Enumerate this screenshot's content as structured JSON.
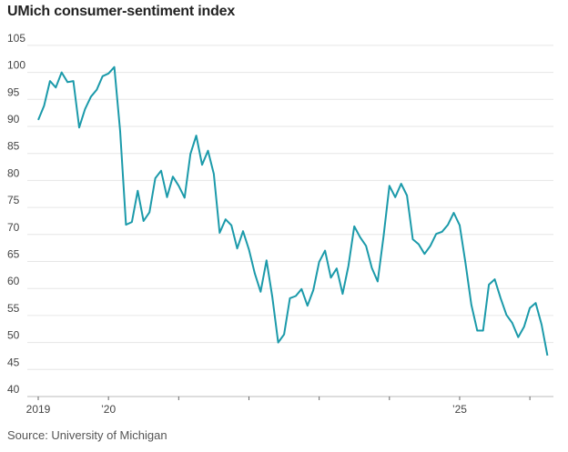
{
  "chart_data": {
    "type": "line",
    "title": "UMich consumer-sentiment index",
    "source": "Source: University of Michigan",
    "xlabel": "",
    "ylabel": "",
    "ylim": [
      40,
      105
    ],
    "yticks": [
      "40",
      "45",
      "50",
      "55",
      "60",
      "65",
      "70",
      "75",
      "80",
      "85",
      "90",
      "95",
      "100",
      "105"
    ],
    "xticks": [
      {
        "month_index": 0,
        "label": "2019"
      },
      {
        "month_index": 12,
        "label": "’20"
      },
      {
        "month_index": 24,
        "label": ""
      },
      {
        "month_index": 36,
        "label": ""
      },
      {
        "month_index": 48,
        "label": ""
      },
      {
        "month_index": 60,
        "label": ""
      },
      {
        "month_index": 72,
        "label": "’25"
      },
      {
        "month_index": 84,
        "label": ""
      }
    ],
    "x_start": "2019-01",
    "grid": true,
    "color": "#1b9aaa",
    "series": [
      {
        "name": "UMich consumer-sentiment index",
        "values": [
          91.2,
          93.8,
          98.4,
          97.2,
          100.0,
          98.2,
          98.4,
          89.8,
          93.2,
          95.5,
          96.8,
          99.3,
          99.8,
          101.0,
          89.1,
          71.8,
          72.3,
          78.1,
          72.5,
          74.1,
          80.4,
          81.8,
          76.9,
          80.7,
          79.0,
          76.8,
          84.9,
          88.3,
          82.9,
          85.5,
          81.2,
          70.3,
          72.8,
          71.7,
          67.4,
          70.6,
          67.2,
          62.8,
          59.4,
          65.2,
          58.4,
          50.0,
          51.5,
          58.2,
          58.6,
          59.9,
          56.8,
          59.7,
          64.9,
          67.0,
          62.0,
          63.7,
          59.0,
          64.2,
          71.5,
          69.5,
          67.9,
          63.8,
          61.3,
          69.7,
          79.0,
          76.9,
          79.4,
          77.2,
          69.1,
          68.2,
          66.4,
          67.9,
          70.1,
          70.5,
          71.8,
          74.0,
          71.7,
          64.7,
          57.0,
          52.2,
          52.2,
          60.7,
          61.7,
          58.2,
          55.1,
          53.6,
          51.0,
          52.9,
          56.4,
          57.3,
          53.3,
          47.6
        ]
      }
    ]
  }
}
